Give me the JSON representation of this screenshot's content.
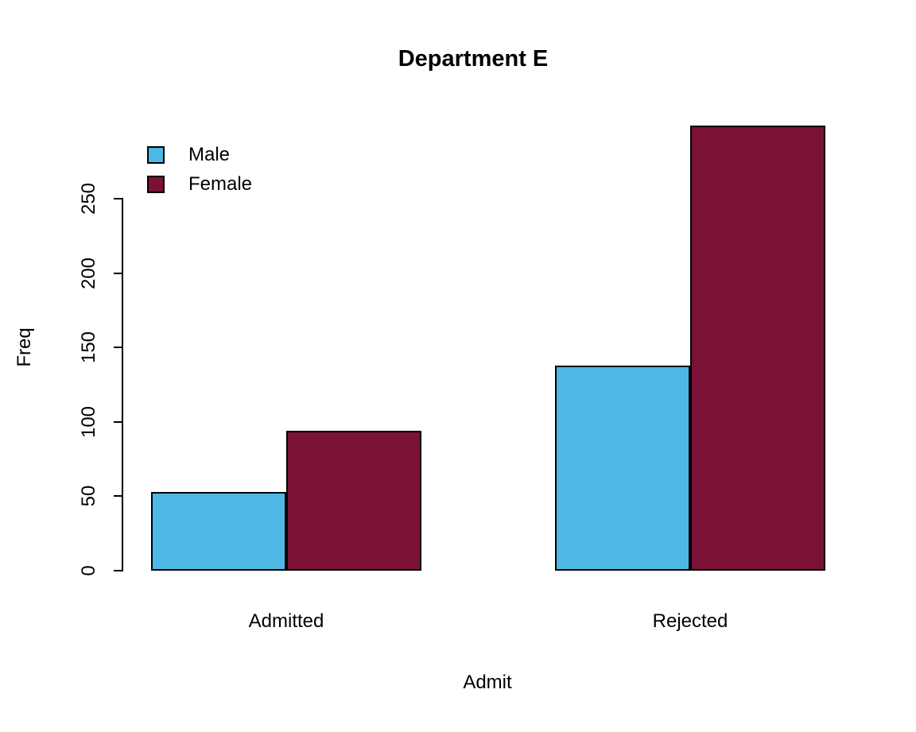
{
  "chart_data": {
    "type": "bar",
    "title": "Department E",
    "xlabel": "Admit",
    "ylabel": "Freq",
    "categories": [
      "Admitted",
      "Rejected"
    ],
    "series": [
      {
        "name": "Male",
        "color": "#4DB8E5",
        "values": [
          53,
          138
        ]
      },
      {
        "name": "Female",
        "color": "#7A1136",
        "values": [
          94,
          299
        ]
      }
    ],
    "ylim": [
      0,
      250
    ],
    "yticks": [
      0,
      50,
      100,
      150,
      200,
      250
    ],
    "legend_position": "top-left",
    "grid": false,
    "bar_border_color": "#000000",
    "axis_color": "#000000",
    "background": "#FFFFFF"
  }
}
